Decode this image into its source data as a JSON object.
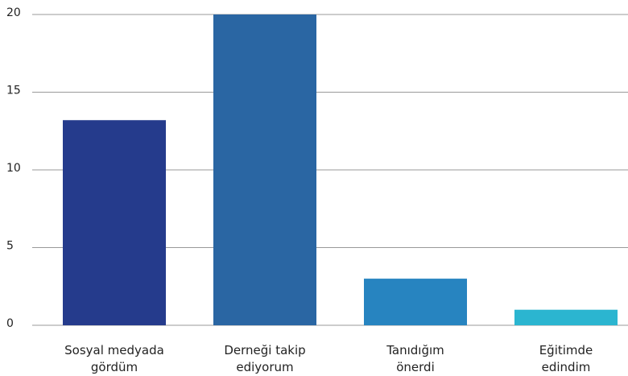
{
  "chart_data": {
    "type": "bar",
    "categories": [
      [
        "Sosyal medyada",
        "gördüm"
      ],
      [
        "Derneği takip",
        "ediyorum"
      ],
      [
        "Tanıdığım",
        "önerdi"
      ],
      [
        "Eğitimde",
        "edindim"
      ]
    ],
    "values": [
      13.2,
      20,
      3,
      1
    ],
    "colors": [
      "#253b8c",
      "#2a66a3",
      "#2784c0",
      "#2bb5d0"
    ],
    "ylim": [
      0,
      20
    ],
    "yticks": [
      0,
      5,
      10,
      15,
      20
    ],
    "grid": true
  }
}
